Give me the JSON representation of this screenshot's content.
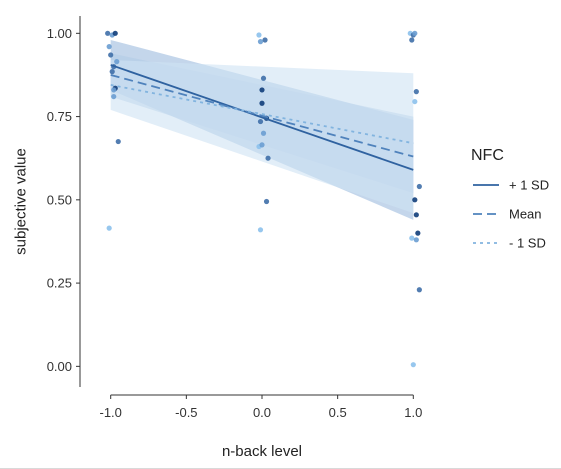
{
  "chart_data": {
    "type": "scatter",
    "xlabel": "n-back level",
    "ylabel": "subjective value",
    "xlim": [
      -1.15,
      1.15
    ],
    "ylim": [
      -0.05,
      1.04
    ],
    "xticks": [
      -1.0,
      -0.5,
      0.0,
      0.5,
      1.0
    ],
    "xtick_labels": [
      "-1.0",
      "-0.5",
      "0.0",
      "0.5",
      "1.0"
    ],
    "yticks": [
      0.0,
      0.25,
      0.5,
      0.75,
      1.0
    ],
    "ytick_labels": [
      "0.00",
      "0.25",
      "0.50",
      "0.75",
      "1.00"
    ],
    "grid": false,
    "legend": {
      "title": "NFC",
      "placement": "right"
    },
    "series": [
      {
        "name": "+ 1 SD",
        "color": "#2f62a0",
        "dash": "solid",
        "line": {
          "x": [
            -1.0,
            1.0
          ],
          "y": [
            0.905,
            0.59
          ]
        },
        "band": {
          "lower": [
            0.83,
            0.44
          ],
          "upper": [
            0.98,
            0.74
          ]
        },
        "band_color": "#9dbbdd"
      },
      {
        "name": "Mean",
        "color": "#4f82bc",
        "dash": "long",
        "line": {
          "x": [
            -1.0,
            1.0
          ],
          "y": [
            0.875,
            0.63
          ]
        },
        "band": {
          "lower": [
            0.81,
            0.52
          ],
          "upper": [
            0.94,
            0.75
          ]
        },
        "band_color": "#b3cce6"
      },
      {
        "name": "- 1 SD",
        "color": "#82b4df",
        "dash": "short",
        "line": {
          "x": [
            -1.0,
            1.0
          ],
          "y": [
            0.845,
            0.67
          ]
        },
        "band": {
          "lower": [
            0.77,
            0.46
          ],
          "upper": [
            0.92,
            0.88
          ]
        },
        "band_color": "#cfe2f3"
      }
    ],
    "points": [
      {
        "x": -1.02,
        "y": 1.0,
        "c": "#3f6fa8"
      },
      {
        "x": -0.99,
        "y": 0.995,
        "c": "#6a9dd1"
      },
      {
        "x": -0.97,
        "y": 1.0,
        "c": "#0f3d7a"
      },
      {
        "x": -1.01,
        "y": 0.96,
        "c": "#6a9dd1"
      },
      {
        "x": -1.0,
        "y": 0.935,
        "c": "#3f6fa8"
      },
      {
        "x": -0.96,
        "y": 0.915,
        "c": "#6a9dd1"
      },
      {
        "x": -0.98,
        "y": 0.9,
        "c": "#3f6fa8"
      },
      {
        "x": -0.99,
        "y": 0.885,
        "c": "#3f6fa8"
      },
      {
        "x": -0.97,
        "y": 0.835,
        "c": "#0f3d7a"
      },
      {
        "x": -0.98,
        "y": 0.83,
        "c": "#6a9dd1"
      },
      {
        "x": -0.98,
        "y": 0.81,
        "c": "#6a9dd1"
      },
      {
        "x": -0.95,
        "y": 0.675,
        "c": "#3f6fa8"
      },
      {
        "x": -1.01,
        "y": 0.415,
        "c": "#8cc1ec"
      },
      {
        "x": -0.02,
        "y": 0.995,
        "c": "#8cc1ec"
      },
      {
        "x": 0.02,
        "y": 0.98,
        "c": "#3f6fa8"
      },
      {
        "x": -0.01,
        "y": 0.975,
        "c": "#6a9dd1"
      },
      {
        "x": 0.01,
        "y": 0.865,
        "c": "#3f6fa8"
      },
      {
        "x": 0.0,
        "y": 0.83,
        "c": "#0f3d7a"
      },
      {
        "x": 0.0,
        "y": 0.79,
        "c": "#0f3d7a"
      },
      {
        "x": 0.03,
        "y": 0.745,
        "c": "#0f3d7a"
      },
      {
        "x": -0.01,
        "y": 0.735,
        "c": "#3f6fa8"
      },
      {
        "x": 0.01,
        "y": 0.7,
        "c": "#6a9dd1"
      },
      {
        "x": -0.02,
        "y": 0.66,
        "c": "#8cc1ec"
      },
      {
        "x": 0.0,
        "y": 0.665,
        "c": "#6a9dd1"
      },
      {
        "x": 0.04,
        "y": 0.625,
        "c": "#3f6fa8"
      },
      {
        "x": 0.03,
        "y": 0.495,
        "c": "#3f6fa8"
      },
      {
        "x": -0.01,
        "y": 0.41,
        "c": "#8cc1ec"
      },
      {
        "x": 0.98,
        "y": 1.0,
        "c": "#8cc1ec"
      },
      {
        "x": 1.0,
        "y": 0.995,
        "c": "#3f6fa8"
      },
      {
        "x": 1.01,
        "y": 1.0,
        "c": "#6a9dd1"
      },
      {
        "x": 0.99,
        "y": 0.98,
        "c": "#3f6fa8"
      },
      {
        "x": 1.02,
        "y": 0.825,
        "c": "#3f6fa8"
      },
      {
        "x": 1.01,
        "y": 0.795,
        "c": "#8cc1ec"
      },
      {
        "x": 1.04,
        "y": 0.54,
        "c": "#3f6fa8"
      },
      {
        "x": 1.01,
        "y": 0.5,
        "c": "#0f3d7a"
      },
      {
        "x": 1.02,
        "y": 0.455,
        "c": "#0f3d7a"
      },
      {
        "x": 1.03,
        "y": 0.4,
        "c": "#0f3d7a"
      },
      {
        "x": 0.99,
        "y": 0.385,
        "c": "#8cc1ec"
      },
      {
        "x": 1.02,
        "y": 0.38,
        "c": "#6a9dd1"
      },
      {
        "x": 1.04,
        "y": 0.23,
        "c": "#3f6fa8"
      },
      {
        "x": 1.0,
        "y": 0.005,
        "c": "#8cc1ec"
      }
    ]
  }
}
